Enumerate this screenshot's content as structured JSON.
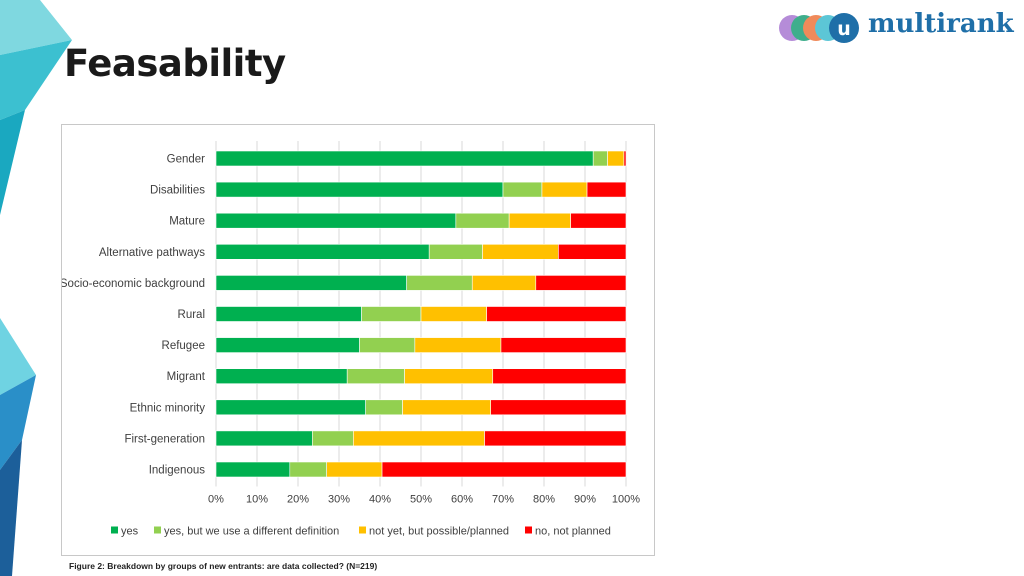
{
  "slide": {
    "title": "Feasability",
    "logo_text": "multirank",
    "logo_badge": "u",
    "caption": "Figure 2: Breakdown by groups of new entrants: are data collected? (N=219)"
  },
  "chart_data": {
    "type": "bar",
    "orientation": "horizontal",
    "stacked": true,
    "title": "",
    "xlabel": "",
    "ylabel": "",
    "xlim": [
      0,
      100
    ],
    "x_ticks": [
      "0%",
      "10%",
      "20%",
      "30%",
      "40%",
      "50%",
      "60%",
      "70%",
      "80%",
      "90%",
      "100%"
    ],
    "grid": true,
    "legend_position": "bottom",
    "categories": [
      "Gender",
      "Disabilities",
      "Mature",
      "Alternative pathways",
      "Socio-economic background",
      "Rural",
      "Refugee",
      "Migrant",
      "Ethnic minority",
      "First-generation",
      "Indigenous"
    ],
    "series": [
      {
        "name": "yes",
        "color": "#00b050",
        "values": [
          92,
          70,
          58.5,
          52,
          46.5,
          35.5,
          35,
          32,
          36.5,
          23.5,
          18
        ]
      },
      {
        "name": "yes, but we use a different definition",
        "color": "#92d050",
        "values": [
          3.5,
          9.5,
          13,
          13,
          16,
          14.5,
          13.5,
          14,
          9,
          10,
          9
        ]
      },
      {
        "name": "not yet, but possible/planned",
        "color": "#ffc000",
        "values": [
          4,
          11,
          15,
          18.5,
          15.5,
          16,
          21,
          21.5,
          21.5,
          32,
          13.5
        ]
      },
      {
        "name": "no, not planned",
        "color": "#ff0000",
        "values": [
          0.5,
          9.5,
          13.5,
          16.5,
          22,
          34,
          30.5,
          32.5,
          33,
          34.5,
          59.5
        ]
      }
    ]
  }
}
